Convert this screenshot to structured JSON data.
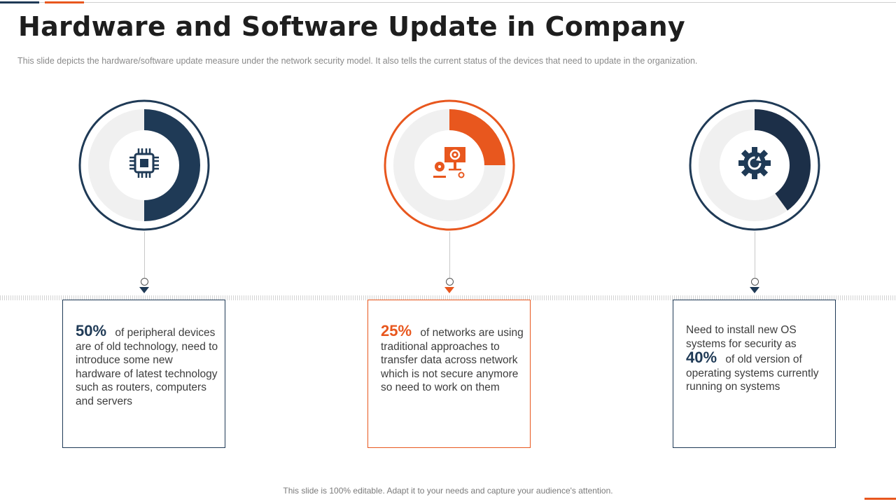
{
  "header": {
    "title": "Hardware and Software Update in Company",
    "subtitle": "This slide depicts the hardware/software  update measure under the network security model. It also tells the current status of the devices  that need to update in the organization."
  },
  "colors": {
    "navy": "#1f3a56",
    "orange": "#e8571e",
    "track": "#f0f0f0"
  },
  "items": [
    {
      "icon": "cpu-chip-icon",
      "progress": 0.5,
      "percent": "50%",
      "text_before": "",
      "text_after": "of peripheral devices are of old technology,  need to introduce some new hardware of latest technology  such  as routers, computers and servers"
    },
    {
      "icon": "computer-settings-icon",
      "progress": 0.25,
      "percent": "25%",
      "text_before": "",
      "text_after": "of networks are using traditional approaches to transfer data across network which is not secure anymore  so need to work on them"
    },
    {
      "icon": "gear-update-icon",
      "progress": 0.4,
      "percent": "40%",
      "text_before": "Need to install new OS systems for security as",
      "text_after": "of old version of operating systems currently running  on systems"
    }
  ],
  "footer": {
    "text": "This slide is 100% editable. Adapt it to your needs and capture your audience's attention."
  }
}
